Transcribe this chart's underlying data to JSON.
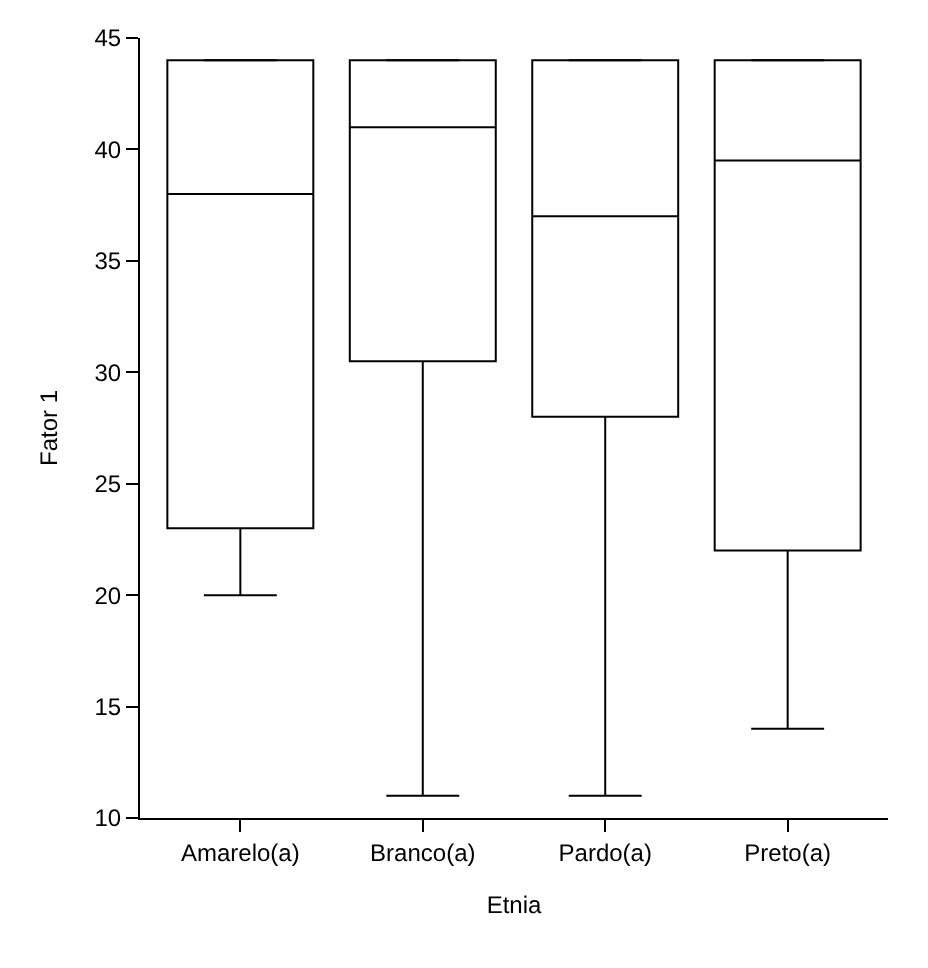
{
  "chart_data": {
    "type": "box",
    "xlabel": "Etnia",
    "ylabel": "Fator 1",
    "categories": [
      "Amarelo(a)",
      "Branco(a)",
      "Pardo(a)",
      "Preto(a)"
    ],
    "boxes": [
      {
        "low": 20,
        "q1": 23,
        "median": 38,
        "q3": 44,
        "high": 44
      },
      {
        "low": 11,
        "q1": 30.5,
        "median": 41,
        "q3": 44,
        "high": 44
      },
      {
        "low": 11,
        "q1": 28,
        "median": 37,
        "q3": 44,
        "high": 44
      },
      {
        "low": 14,
        "q1": 22,
        "median": 39.5,
        "q3": 44,
        "high": 44
      }
    ],
    "color": "#000000",
    "ylim": [
      10,
      45
    ],
    "yticks": [
      10,
      15,
      20,
      25,
      30,
      35,
      40,
      45
    ],
    "grid": false,
    "legend": false
  }
}
